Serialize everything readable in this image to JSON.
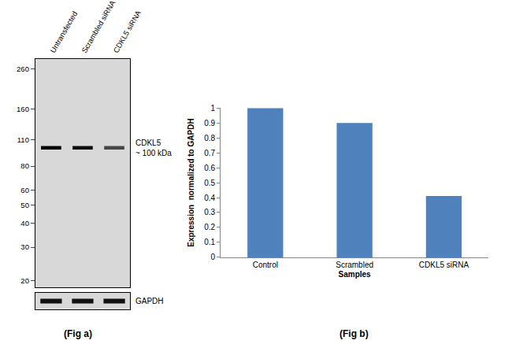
{
  "chart_data": {
    "type": "bar",
    "categories": [
      "Control",
      "Scrambled",
      "CDKL5 siRNA"
    ],
    "values": [
      1,
      0.9,
      0.41
    ],
    "color": "#4f81bd",
    "xlabel": "Samples",
    "ylabel": "Expression  normalized to GAPDH",
    "ylim": [
      0,
      1
    ],
    "yticks": [
      0,
      0.1,
      0.2,
      0.3,
      0.4,
      0.5,
      0.6,
      0.7,
      0.8,
      0.9,
      1
    ],
    "grid": false,
    "caption": "(Fig b)"
  },
  "blot": {
    "caption": "(Fig a)",
    "lanes": [
      "Untransfected",
      "Scrambled siRNA",
      "CDKL5 siRNA"
    ],
    "ylim": [
      18.5,
      292
    ],
    "marker_kDa": [
      260,
      160,
      110,
      80,
      60,
      50,
      40,
      30,
      20
    ],
    "band": {
      "label": "CDKL5",
      "size_label": "~ 100 kDa",
      "kDa": 100
    },
    "loading_control": "GAPDH"
  }
}
